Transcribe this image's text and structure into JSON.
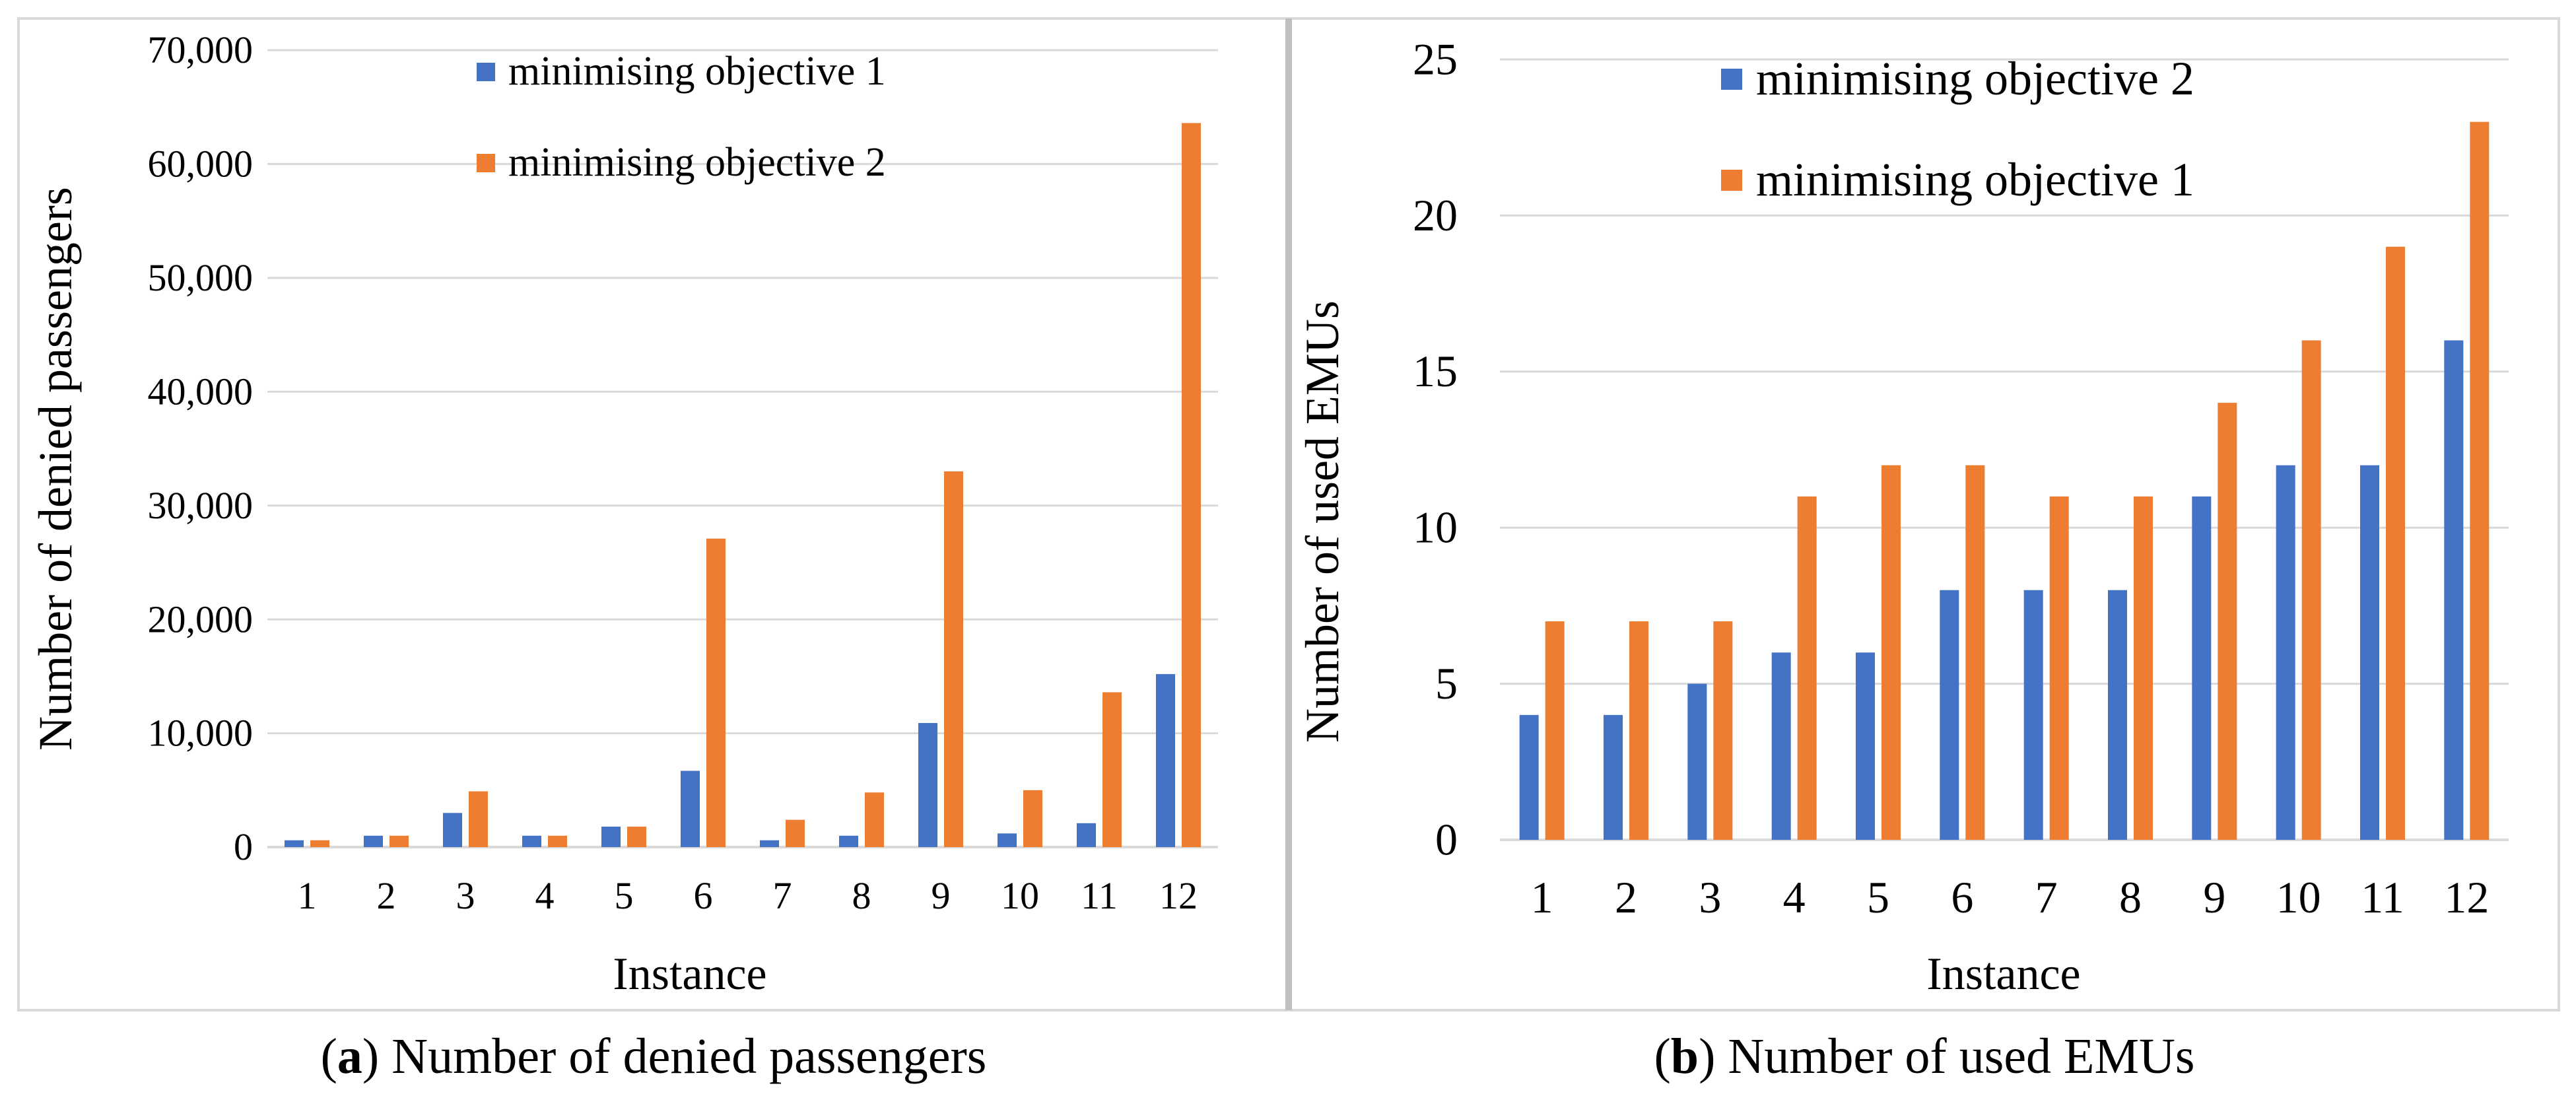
{
  "colors": {
    "blue": "#4472C4",
    "orange": "#ED7D31",
    "grid": "#D9D9D9",
    "border": "#D9D9D9",
    "divider": "#BFBFBF"
  },
  "charts": [
    {
      "id": "a",
      "caption_letter": "a",
      "caption_text": " Number of denied passengers"
    },
    {
      "id": "b",
      "caption_letter": "b",
      "caption_text": " Number of used EMUs"
    }
  ],
  "chart_data": [
    {
      "type": "bar",
      "title": "",
      "xlabel": "Instance",
      "ylabel": "Number of denied passengers",
      "ylim": [
        0,
        70000
      ],
      "yticks": [
        0,
        10000,
        20000,
        30000,
        40000,
        50000,
        60000,
        70000
      ],
      "ytick_labels": [
        "0",
        "10,000",
        "20,000",
        "30,000",
        "40,000",
        "50,000",
        "60,000",
        "70,000"
      ],
      "categories": [
        "1",
        "2",
        "3",
        "4",
        "5",
        "6",
        "7",
        "8",
        "9",
        "10",
        "11",
        "12"
      ],
      "grid": true,
      "legend_position": "top-center",
      "series": [
        {
          "name": "minimising objective 1",
          "color": "blue",
          "values": [
            600,
            1000,
            3000,
            1000,
            1800,
            6700,
            600,
            1000,
            10900,
            1200,
            2100,
            15200
          ]
        },
        {
          "name": "minimising objective 2",
          "color": "orange",
          "values": [
            600,
            1000,
            4900,
            1000,
            1800,
            27100,
            2400,
            4800,
            33000,
            5000,
            13600,
            63600
          ]
        }
      ]
    },
    {
      "type": "bar",
      "title": "",
      "xlabel": "Instance",
      "ylabel": "Number of used EMUs",
      "ylim": [
        0,
        25
      ],
      "yticks": [
        0,
        5,
        10,
        15,
        20,
        25
      ],
      "ytick_labels": [
        "0",
        "5",
        "10",
        "15",
        "20",
        "25"
      ],
      "categories": [
        "1",
        "2",
        "3",
        "4",
        "5",
        "6",
        "7",
        "8",
        "9",
        "10",
        "11",
        "12"
      ],
      "grid": true,
      "legend_position": "top-center",
      "series": [
        {
          "name": "minimising objective 2",
          "color": "blue",
          "values": [
            4,
            4,
            5,
            6,
            6,
            8,
            8,
            8,
            11,
            12,
            12,
            16
          ]
        },
        {
          "name": "minimising objective 1",
          "color": "orange",
          "values": [
            7,
            7,
            7,
            11,
            12,
            12,
            11,
            11,
            14,
            16,
            19,
            23
          ]
        }
      ]
    }
  ]
}
